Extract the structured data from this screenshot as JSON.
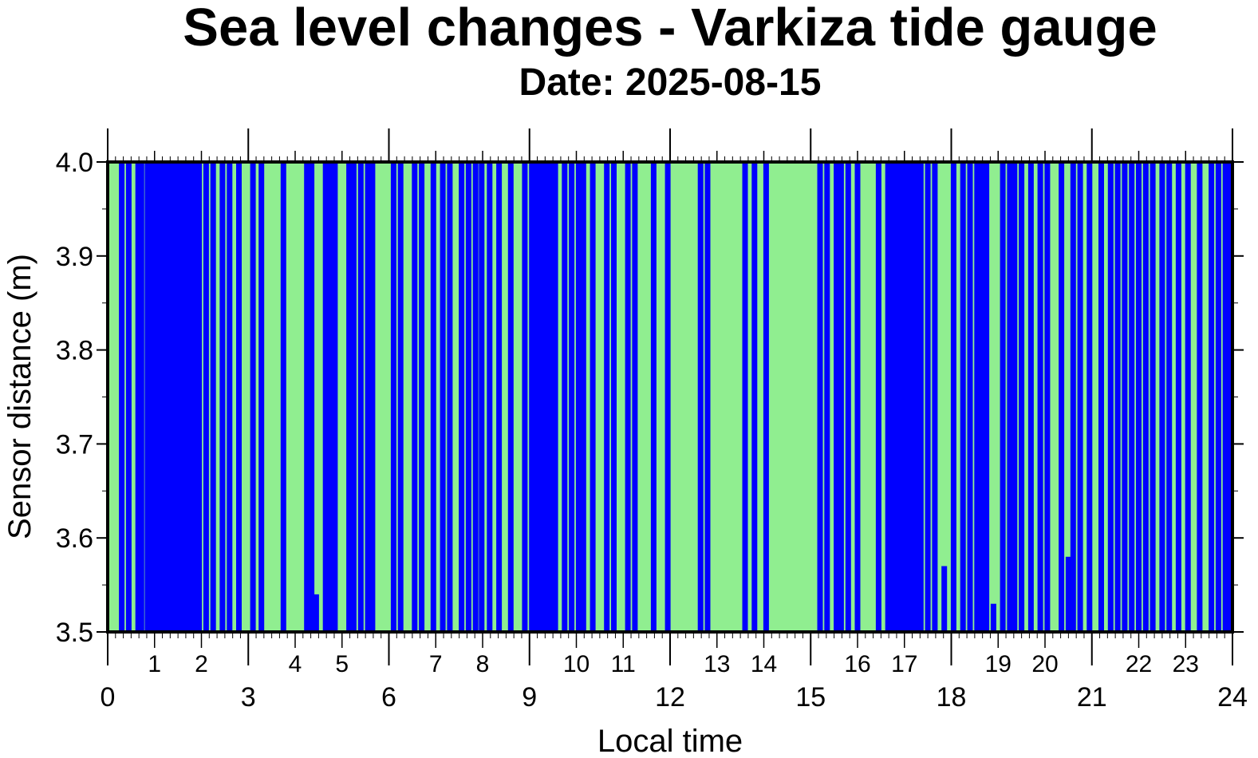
{
  "chart_data": {
    "type": "area",
    "title": "Sea level changes - Varkiza tide gauge",
    "subtitle": "Date: 2025-08-15",
    "xlabel": "Local time",
    "ylabel": "Sensor distance (m)",
    "xlim": [
      0,
      24
    ],
    "ylim": [
      3.5,
      4.0
    ],
    "x_major_ticks": [
      "0",
      "3",
      "6",
      "9",
      "12",
      "15",
      "18",
      "21",
      "24"
    ],
    "x_hour_labels": [
      "1",
      "2",
      "4",
      "5",
      "7",
      "8",
      "10",
      "11",
      "13",
      "14",
      "16",
      "17",
      "19",
      "20",
      "22",
      "23"
    ],
    "y_ticks": [
      "3.5",
      "3.6",
      "3.7",
      "3.8",
      "3.9",
      "4.0"
    ],
    "colors": {
      "fill": "#90ee90",
      "series": "#0000ff",
      "frame": "#000000"
    },
    "series": [
      {
        "values_note_free": true,
        "segments": [
          [
            0.3,
            4.0
          ],
          [
            0.45,
            4.0
          ],
          [
            0.65,
            4.0
          ],
          [
            0.72,
            4.0
          ],
          [
            0.85,
            4.0
          ],
          [
            0.88,
            4.0
          ],
          [
            0.95,
            4.0
          ],
          [
            1.0,
            4.0
          ],
          [
            1.05,
            4.0
          ],
          [
            1.12,
            4.0
          ],
          [
            1.18,
            4.0
          ],
          [
            1.25,
            4.0
          ],
          [
            1.3,
            4.0
          ],
          [
            1.38,
            4.0
          ],
          [
            1.45,
            4.0
          ],
          [
            1.52,
            4.0
          ],
          [
            1.58,
            4.0
          ],
          [
            1.65,
            4.0
          ],
          [
            1.75,
            4.0
          ],
          [
            1.85,
            4.0
          ],
          [
            1.95,
            4.0
          ],
          [
            2.1,
            4.0
          ],
          [
            2.25,
            4.0
          ],
          [
            2.45,
            4.0
          ],
          [
            2.6,
            4.0
          ],
          [
            2.8,
            4.0
          ],
          [
            3.1,
            4.0
          ],
          [
            3.28,
            4.0
          ],
          [
            3.75,
            4.0
          ],
          [
            4.25,
            4.0
          ],
          [
            4.35,
            4.0
          ],
          [
            4.45,
            3.54
          ],
          [
            4.65,
            4.0
          ],
          [
            4.75,
            4.0
          ],
          [
            4.85,
            4.0
          ],
          [
            5.15,
            4.0
          ],
          [
            5.25,
            4.0
          ],
          [
            5.4,
            4.0
          ],
          [
            5.55,
            4.0
          ],
          [
            5.65,
            4.0
          ],
          [
            6.1,
            4.0
          ],
          [
            6.25,
            4.0
          ],
          [
            6.55,
            4.0
          ],
          [
            6.7,
            4.0
          ],
          [
            6.95,
            4.0
          ],
          [
            7.15,
            4.0
          ],
          [
            7.3,
            4.0
          ],
          [
            7.55,
            4.0
          ],
          [
            7.7,
            4.0
          ],
          [
            7.85,
            4.0
          ],
          [
            7.98,
            4.0
          ],
          [
            8.15,
            4.0
          ],
          [
            8.35,
            4.0
          ],
          [
            8.6,
            4.0
          ],
          [
            8.9,
            4.0
          ],
          [
            9.05,
            4.0
          ],
          [
            9.15,
            4.0
          ],
          [
            9.25,
            4.0
          ],
          [
            9.35,
            4.0
          ],
          [
            9.45,
            4.0
          ],
          [
            9.55,
            4.0
          ],
          [
            9.75,
            4.0
          ],
          [
            9.9,
            4.0
          ],
          [
            10.05,
            4.0
          ],
          [
            10.15,
            4.0
          ],
          [
            10.35,
            4.0
          ],
          [
            10.65,
            4.0
          ],
          [
            10.8,
            4.0
          ],
          [
            11.1,
            4.0
          ],
          [
            11.25,
            4.0
          ],
          [
            11.65,
            4.0
          ],
          [
            11.95,
            4.0
          ],
          [
            12.65,
            4.0
          ],
          [
            12.8,
            4.0
          ],
          [
            13.6,
            4.0
          ],
          [
            13.8,
            4.0
          ],
          [
            14.05,
            4.0
          ],
          [
            15.2,
            4.0
          ],
          [
            15.35,
            4.0
          ],
          [
            15.55,
            4.0
          ],
          [
            15.65,
            4.0
          ],
          [
            15.8,
            4.0
          ],
          [
            16.0,
            4.0
          ],
          [
            16.45,
            4.0
          ],
          [
            16.65,
            4.0
          ],
          [
            16.75,
            4.0
          ],
          [
            16.85,
            4.0
          ],
          [
            16.95,
            4.0
          ],
          [
            17.05,
            4.0
          ],
          [
            17.15,
            4.0
          ],
          [
            17.25,
            4.0
          ],
          [
            17.35,
            4.0
          ],
          [
            17.5,
            4.0
          ],
          [
            17.65,
            4.0
          ],
          [
            17.85,
            3.57
          ],
          [
            18.05,
            4.0
          ],
          [
            18.25,
            4.0
          ],
          [
            18.4,
            4.0
          ],
          [
            18.55,
            4.0
          ],
          [
            18.65,
            4.0
          ],
          [
            18.75,
            4.0
          ],
          [
            18.9,
            3.53
          ],
          [
            19.1,
            4.0
          ],
          [
            19.25,
            4.0
          ],
          [
            19.35,
            4.0
          ],
          [
            19.5,
            4.0
          ],
          [
            19.7,
            4.0
          ],
          [
            19.9,
            4.0
          ],
          [
            20.05,
            4.0
          ],
          [
            20.35,
            4.0
          ],
          [
            20.5,
            3.58
          ],
          [
            20.6,
            4.0
          ],
          [
            20.75,
            4.0
          ],
          [
            20.95,
            4.0
          ],
          [
            21.2,
            4.0
          ],
          [
            21.4,
            4.0
          ],
          [
            21.55,
            4.0
          ],
          [
            21.7,
            4.0
          ],
          [
            21.85,
            4.0
          ],
          [
            22.0,
            4.0
          ],
          [
            22.15,
            4.0
          ],
          [
            22.3,
            4.0
          ],
          [
            22.5,
            4.0
          ],
          [
            22.65,
            4.0
          ],
          [
            22.85,
            4.0
          ],
          [
            23.05,
            4.0
          ],
          [
            23.3,
            4.0
          ],
          [
            23.55,
            4.0
          ],
          [
            23.7,
            4.0
          ],
          [
            23.85,
            4.0
          ],
          [
            23.95,
            4.0
          ]
        ]
      }
    ],
    "grid": false,
    "legend": "none"
  }
}
